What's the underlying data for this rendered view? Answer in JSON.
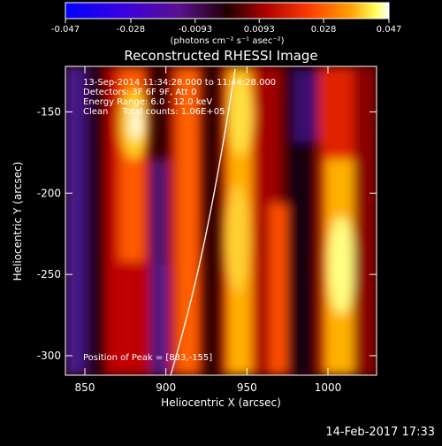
{
  "colorbar": {
    "ticks": [
      "-0.047",
      "-0.028",
      "-0.0093",
      "0.0093",
      "0.028",
      "0.047"
    ],
    "units": "(photons cm⁻² s⁻¹ asec⁻²)",
    "range": [
      -0.047,
      0.047
    ]
  },
  "image": {
    "title": "Reconstructed RHESSI Image",
    "annotation_lines": [
      "13-Sep-2014 11:34:28.000 to 11:44:28.000",
      "Detectors: 3F 6F 9F, Att 0",
      "Energy Range: 6.0 - 12.0 keV",
      "Clean     Total counts: 1.06E+05"
    ],
    "peak_label": "Position of Peak = [883,-155]",
    "xlabel": "Heliocentric X (arcsec)",
    "ylabel": "Heliocentric Y (arcsec)",
    "x_ticks": [
      "850",
      "900",
      "950",
      "1000"
    ],
    "x_tick_values": [
      850,
      900,
      950,
      1000
    ],
    "y_ticks": [
      "-150",
      "-200",
      "-250",
      "-300"
    ],
    "y_tick_values": [
      -150,
      -200,
      -250,
      -300
    ],
    "xlim": [
      838,
      1030
    ],
    "ylim": [
      -312,
      -122
    ]
  },
  "footer": {
    "timestamp": "14-Feb-2017 17:33"
  }
}
